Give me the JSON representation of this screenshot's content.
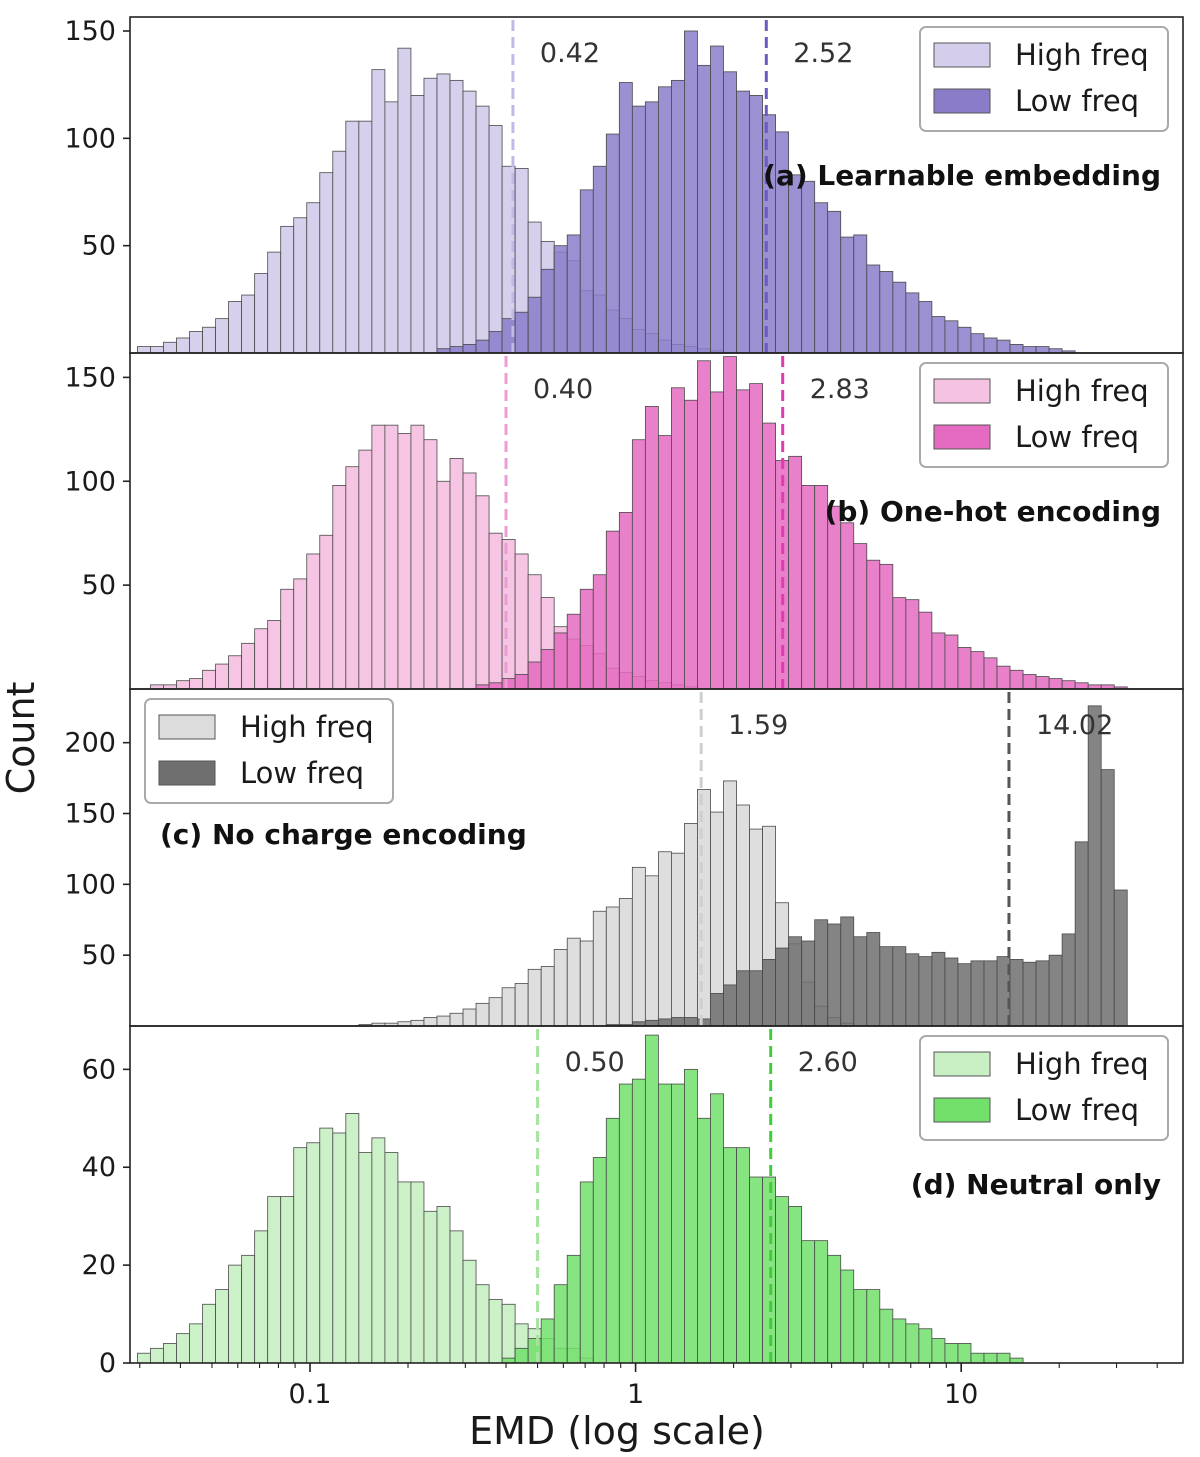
{
  "figure": {
    "xlabel": "EMD (log scale)",
    "ylabel": "Count",
    "x_scale": "log",
    "xlim": [
      0.028,
      48
    ],
    "x_ticks": [
      {
        "value": 0.1,
        "label": "0.1"
      },
      {
        "value": 1,
        "label": "1"
      },
      {
        "value": 10,
        "label": "10"
      }
    ],
    "bin_edges_log10": [
      -1.53,
      1.67
    ],
    "bin_count": 80,
    "grid": false
  },
  "chart_data": [
    {
      "type": "histogram",
      "panel_title": "(a) Learnable embedding",
      "legend_position": "top-right",
      "ylim": [
        0,
        150
      ],
      "y_ticks": [
        {
          "value": 50,
          "label": "50"
        },
        {
          "value": 100,
          "label": "100"
        },
        {
          "value": 150,
          "label": "150"
        }
      ],
      "series": [
        {
          "name": "High freq",
          "color": "#d5cdec",
          "median": 0.42,
          "median_label": "0.42",
          "median_color": "#c4b8e8",
          "distribution": {
            "peak_log10": -0.66,
            "peak_count": 135,
            "sigma_left": 0.3,
            "sigma_right": 0.3,
            "seed": 11
          }
        },
        {
          "name": "Low freq",
          "color": "#8a7cc9",
          "median": 2.52,
          "median_label": "2.52",
          "median_color": "#6a5bc2",
          "distribution": {
            "peak_log10": 0.12,
            "peak_count": 138,
            "sigma_left": 0.24,
            "sigma_right": 0.4,
            "seed": 23
          }
        }
      ]
    },
    {
      "type": "histogram",
      "panel_title": "(b) One-hot encoding",
      "legend_position": "top-right",
      "ylim": [
        0,
        155
      ],
      "y_ticks": [
        {
          "value": 50,
          "label": "50"
        },
        {
          "value": 100,
          "label": "100"
        },
        {
          "value": 150,
          "label": "150"
        }
      ],
      "series": [
        {
          "name": "High freq",
          "color": "#f5c2e2",
          "median": 0.4,
          "median_label": "0.40",
          "median_color": "#ee9ad4",
          "distribution": {
            "peak_log10": -0.7,
            "peak_count": 122,
            "sigma_left": 0.26,
            "sigma_right": 0.29,
            "seed": 37
          }
        },
        {
          "name": "Low freq",
          "color": "#e56ac1",
          "median": 2.83,
          "median_label": "2.83",
          "median_color": "#e03bb0",
          "distribution": {
            "peak_log10": 0.18,
            "peak_count": 148,
            "sigma_left": 0.22,
            "sigma_right": 0.42,
            "seed": 41
          }
        }
      ]
    },
    {
      "type": "histogram",
      "panel_title": "(c) No charge encoding",
      "legend_position": "top-left",
      "ylim": [
        0,
        228
      ],
      "y_ticks": [
        {
          "value": 50,
          "label": "50"
        },
        {
          "value": 100,
          "label": "100"
        },
        {
          "value": 150,
          "label": "150"
        },
        {
          "value": 200,
          "label": "200"
        }
      ],
      "series": [
        {
          "name": "High freq",
          "color": "#dcdcdc",
          "median": 1.59,
          "median_label": "1.59",
          "median_color": "#cfcfcf",
          "distribution": {
            "peak_log10": 0.35,
            "peak_count": 160,
            "sigma_left": 0.38,
            "sigma_right": 0.1,
            "seed": 53
          }
        },
        {
          "name": "Low freq",
          "color": "#6f6f6f",
          "median": 14.02,
          "median_label": "14.02",
          "median_color": "#555555",
          "distribution": {
            "type": "bimodal",
            "seed": 59
          }
        }
      ]
    },
    {
      "type": "histogram",
      "panel_title": "(d) Neutral only",
      "legend_position": "top-right",
      "ylim": [
        0,
        66
      ],
      "y_ticks": [
        {
          "value": 0,
          "label": "0"
        },
        {
          "value": 20,
          "label": "20"
        },
        {
          "value": 40,
          "label": "40"
        },
        {
          "value": 60,
          "label": "60"
        }
      ],
      "series": [
        {
          "name": "High freq",
          "color": "#c9efc4",
          "median": 0.5,
          "median_label": "0.50",
          "median_color": "#a6e3a0",
          "distribution": {
            "peak_log10": -0.88,
            "peak_count": 50,
            "sigma_left": 0.25,
            "sigma_right": 0.28,
            "seed": 67
          }
        },
        {
          "name": "Low freq",
          "color": "#72e06b",
          "median": 2.6,
          "median_label": "2.60",
          "median_color": "#3ecf36",
          "distribution": {
            "peak_log10": 0.0,
            "peak_count": 60,
            "sigma_left": 0.14,
            "sigma_right": 0.42,
            "seed": 71
          }
        }
      ]
    }
  ]
}
